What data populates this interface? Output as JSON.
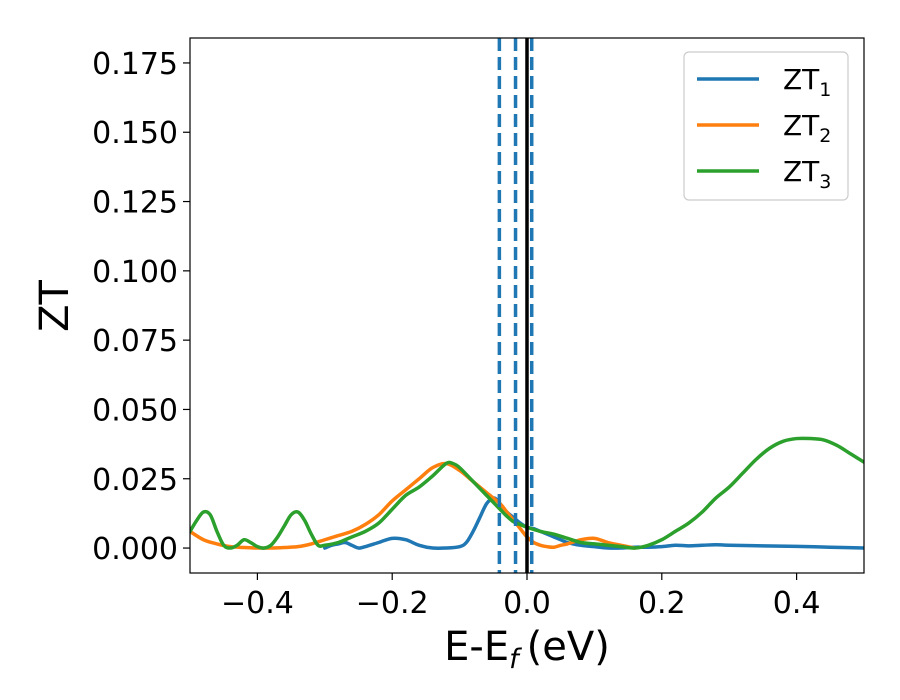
{
  "chart_data": {
    "type": "line",
    "xlabel": "E-E",
    "xlabel_subscript": "f",
    "xlabel_unit": "(eV)",
    "ylabel": "ZT",
    "xlim": [
      -0.5,
      0.5
    ],
    "ylim": [
      -0.009,
      0.184
    ],
    "xticks": [
      -0.4,
      -0.2,
      0.0,
      0.2,
      0.4
    ],
    "xtick_labels": [
      "−0.4",
      "−0.2",
      "0.0",
      "0.2",
      "0.4"
    ],
    "yticks": [
      0.0,
      0.025,
      0.05,
      0.075,
      0.1,
      0.125,
      0.15,
      0.175
    ],
    "ytick_labels": [
      "0.000",
      "0.025",
      "0.050",
      "0.075",
      "0.100",
      "0.125",
      "0.150",
      "0.175"
    ],
    "grid": false,
    "legend_position": "top-right",
    "vlines": [
      {
        "x": -0.041,
        "style": "dashed",
        "color": "#1f77b4"
      },
      {
        "x": -0.017,
        "style": "dashed",
        "color": "#1f77b4"
      },
      {
        "x": 0.007,
        "style": "dashed",
        "color": "#1f77b4"
      },
      {
        "x": 0.0,
        "style": "solid",
        "color": "#000000"
      }
    ],
    "series": [
      {
        "name": "ZT",
        "subscript": "1",
        "color": "#1f77b4",
        "x": [
          -0.3,
          -0.29,
          -0.28,
          -0.27,
          -0.26,
          -0.25,
          -0.24,
          -0.22,
          -0.2,
          -0.18,
          -0.16,
          -0.14,
          -0.12,
          -0.1,
          -0.09,
          -0.08,
          -0.07,
          -0.06,
          -0.05,
          -0.045,
          -0.04,
          -0.03,
          -0.02,
          -0.01,
          0.0,
          0.01,
          0.02,
          0.03,
          0.04,
          0.05,
          0.06,
          0.08,
          0.1,
          0.12,
          0.14,
          0.16,
          0.18,
          0.2,
          0.22,
          0.24,
          0.26,
          0.28,
          0.3,
          0.35,
          0.4,
          0.45,
          0.5
        ],
        "y": [
          0.0,
          0.001,
          0.0015,
          0.002,
          0.001,
          0.0,
          0.0005,
          0.002,
          0.0035,
          0.003,
          0.001,
          0.0,
          0.0,
          0.0005,
          0.002,
          0.006,
          0.011,
          0.016,
          0.018,
          0.0175,
          0.016,
          0.013,
          0.011,
          0.009,
          0.0075,
          0.007,
          0.006,
          0.005,
          0.004,
          0.003,
          0.002,
          0.001,
          0.0005,
          0.0,
          0.0,
          0.0003,
          0.0003,
          0.0005,
          0.001,
          0.0008,
          0.001,
          0.0012,
          0.001,
          0.0008,
          0.0006,
          0.0003,
          0.0
        ]
      },
      {
        "name": "ZT",
        "subscript": "2",
        "color": "#ff7f0e",
        "x": [
          -0.5,
          -0.48,
          -0.46,
          -0.44,
          -0.42,
          -0.4,
          -0.38,
          -0.36,
          -0.34,
          -0.32,
          -0.3,
          -0.28,
          -0.26,
          -0.24,
          -0.22,
          -0.2,
          -0.18,
          -0.16,
          -0.14,
          -0.12,
          -0.1,
          -0.08,
          -0.06,
          -0.04,
          -0.03,
          -0.02,
          -0.01,
          0.0,
          0.01,
          0.02,
          0.03,
          0.04,
          0.05,
          0.06,
          0.08,
          0.1,
          0.12,
          0.14,
          0.16
        ],
        "y": [
          0.006,
          0.003,
          0.0015,
          0.0005,
          0.0002,
          0.0,
          0.0,
          0.0002,
          0.0005,
          0.0015,
          0.003,
          0.0045,
          0.006,
          0.0085,
          0.012,
          0.017,
          0.021,
          0.025,
          0.029,
          0.0305,
          0.028,
          0.024,
          0.02,
          0.016,
          0.013,
          0.01,
          0.007,
          0.004,
          0.002,
          0.001,
          0.0005,
          0.0003,
          0.001,
          0.0015,
          0.003,
          0.0035,
          0.002,
          0.001,
          0.0
        ]
      },
      {
        "name": "ZT",
        "subscript": "3",
        "color": "#2ca02c",
        "x": [
          -0.5,
          -0.49,
          -0.48,
          -0.47,
          -0.46,
          -0.45,
          -0.44,
          -0.43,
          -0.42,
          -0.41,
          -0.4,
          -0.39,
          -0.38,
          -0.37,
          -0.36,
          -0.35,
          -0.34,
          -0.33,
          -0.32,
          -0.31,
          -0.3,
          -0.28,
          -0.26,
          -0.24,
          -0.22,
          -0.2,
          -0.18,
          -0.16,
          -0.14,
          -0.12,
          -0.11,
          -0.1,
          -0.08,
          -0.06,
          -0.04,
          -0.03,
          -0.02,
          -0.01,
          0.0,
          0.02,
          0.04,
          0.06,
          0.08,
          0.1,
          0.12,
          0.14,
          0.16,
          0.18,
          0.2,
          0.22,
          0.24,
          0.26,
          0.28,
          0.3,
          0.32,
          0.34,
          0.36,
          0.38,
          0.4,
          0.42,
          0.44,
          0.46,
          0.48,
          0.5
        ],
        "y": [
          0.006,
          0.01,
          0.013,
          0.012,
          0.006,
          0.001,
          0.0,
          0.001,
          0.003,
          0.002,
          0.0005,
          0.0,
          0.001,
          0.004,
          0.008,
          0.012,
          0.013,
          0.01,
          0.005,
          0.001,
          0.001,
          0.002,
          0.004,
          0.006,
          0.009,
          0.014,
          0.019,
          0.022,
          0.026,
          0.0305,
          0.0305,
          0.029,
          0.024,
          0.019,
          0.014,
          0.0115,
          0.0095,
          0.0085,
          0.0075,
          0.006,
          0.005,
          0.0035,
          0.002,
          0.0015,
          0.001,
          0.0005,
          0.0,
          0.001,
          0.003,
          0.006,
          0.009,
          0.013,
          0.018,
          0.022,
          0.027,
          0.032,
          0.036,
          0.0385,
          0.0395,
          0.0395,
          0.039,
          0.037,
          0.034,
          0.031
        ]
      }
    ]
  }
}
